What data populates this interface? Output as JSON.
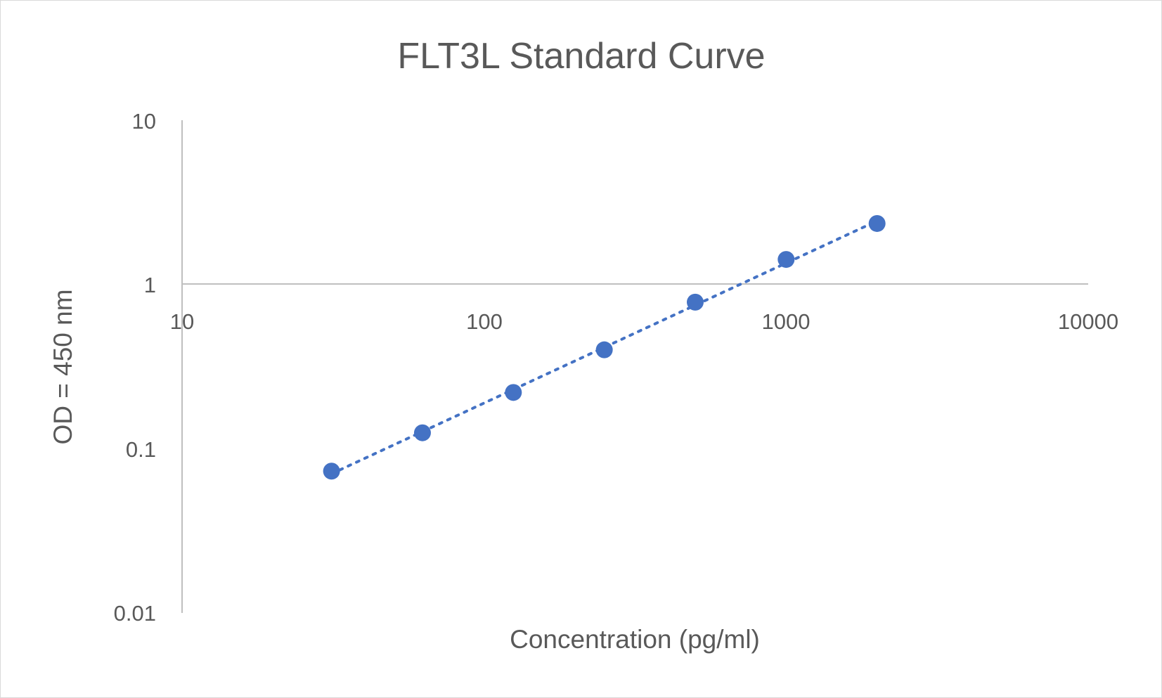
{
  "chart_data": {
    "type": "scatter",
    "title": "FLT3L Standard Curve",
    "xlabel": "Concentration (pg/ml)",
    "ylabel": "OD = 450 nm",
    "x_scale": "log",
    "y_scale": "log",
    "xlim": [
      10,
      10000
    ],
    "ylim": [
      0.01,
      10
    ],
    "x_ticks": [
      "10",
      "100",
      "1000",
      "10000"
    ],
    "y_ticks": [
      "10",
      "1",
      "0.1",
      "0.01"
    ],
    "grid": false,
    "legend": "none",
    "series": [
      {
        "x": [
          31.25,
          62.5,
          125,
          250,
          500,
          1000,
          2000
        ],
        "y": [
          0.073,
          0.125,
          0.22,
          0.4,
          0.78,
          1.42,
          2.35
        ],
        "color": "#4472C4",
        "trendline": "dotted"
      }
    ],
    "colors": {
      "series": "#4472C4",
      "axis": "#bfbfbf",
      "text": "#595959"
    }
  }
}
